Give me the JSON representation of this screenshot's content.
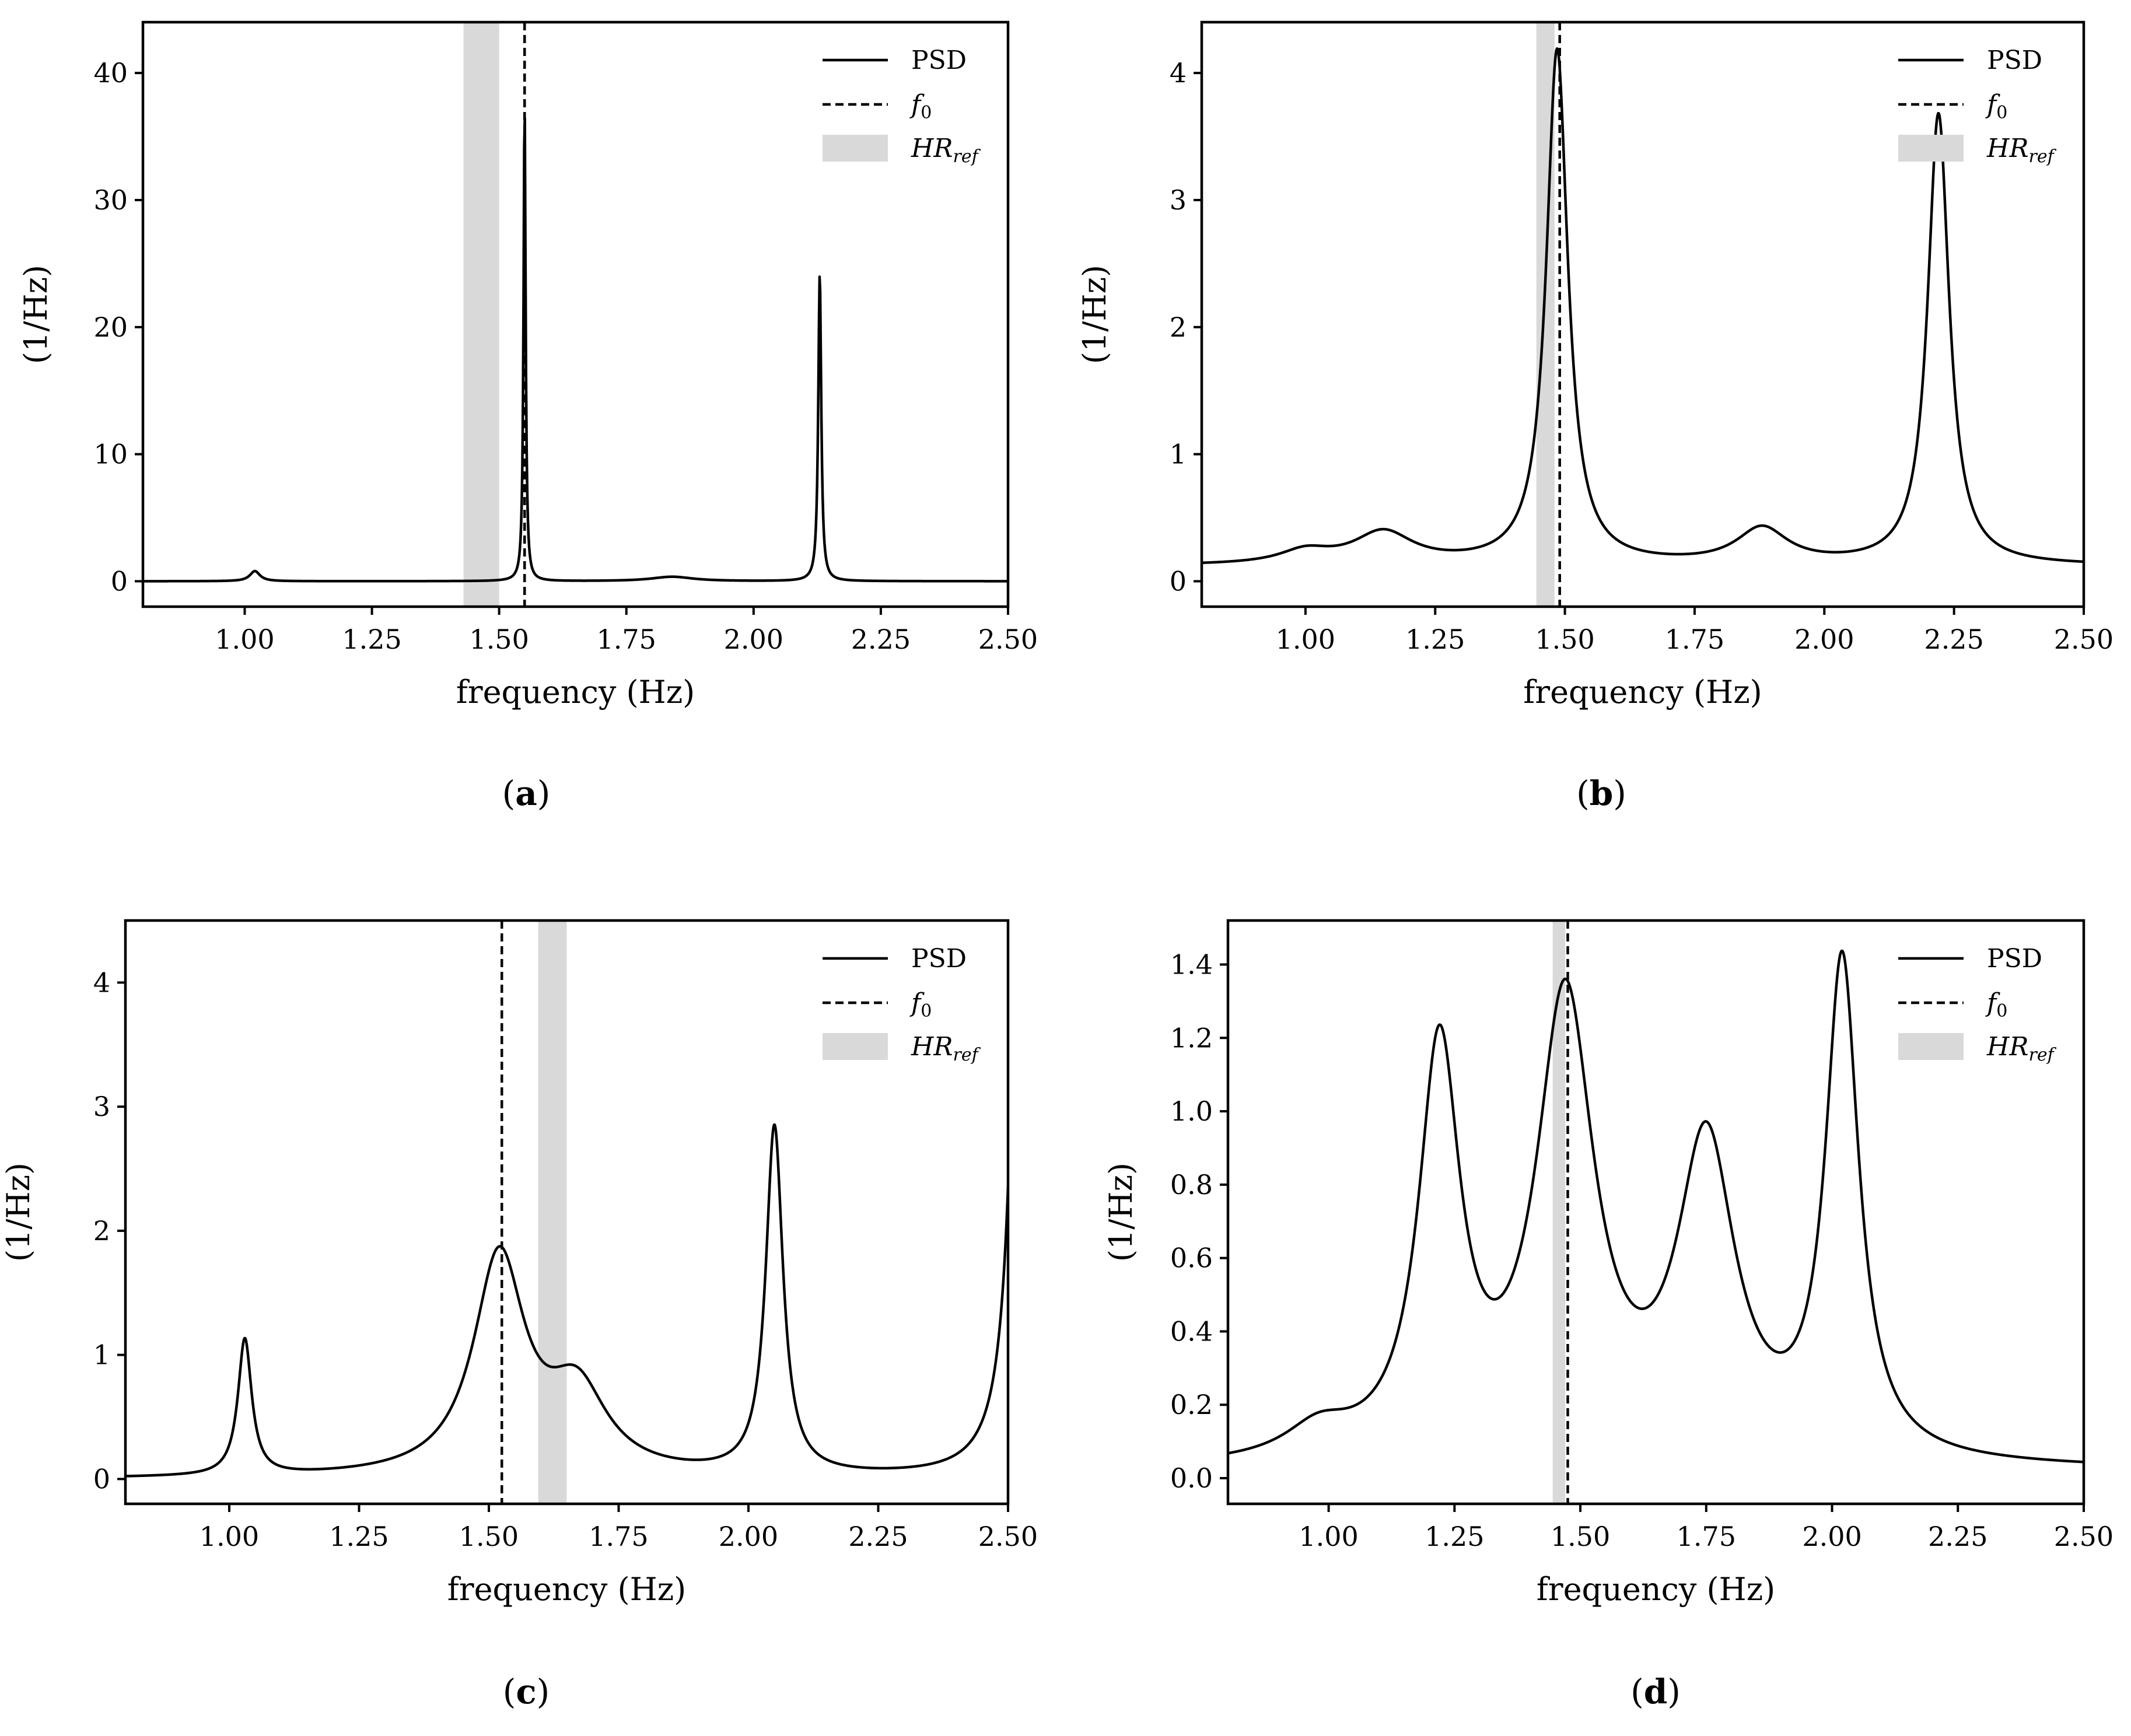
{
  "chart_data": [
    {
      "type": "line",
      "panel": "a",
      "caption": "(a)",
      "xlabel": "frequency (Hz)",
      "ylabel": "(1/Hz)",
      "xlim": [
        0.8,
        2.5
      ],
      "ylim": [
        -2,
        44
      ],
      "xticks": [
        1.0,
        1.25,
        1.5,
        1.75,
        2.0,
        2.25,
        2.5
      ],
      "xtick_labels": [
        "1.00",
        "1.25",
        "1.50",
        "1.75",
        "2.00",
        "2.25",
        "2.50"
      ],
      "yticks": [
        0,
        10,
        20,
        30,
        40
      ],
      "ytick_labels": [
        "0",
        "10",
        "20",
        "30",
        "40"
      ],
      "f0": 1.55,
      "hr_ref": [
        1.43,
        1.5
      ],
      "peaks": [
        {
          "f": 1.02,
          "amp": 0.8,
          "w": 0.012
        },
        {
          "f": 1.55,
          "amp": 37.5,
          "w": 0.0025
        },
        {
          "f": 1.84,
          "amp": 0.35,
          "w": 0.05
        },
        {
          "f": 2.13,
          "amp": 24.2,
          "w": 0.0035
        }
      ],
      "baseline": 0.0,
      "legend": [
        "PSD",
        "f",
        "0",
        "HR",
        "ref"
      ],
      "legend_position": "top-right"
    },
    {
      "type": "line",
      "panel": "b",
      "caption": "(b)",
      "xlabel": "frequency (Hz)",
      "ylabel": "(1/Hz)",
      "xlim": [
        0.8,
        2.5
      ],
      "ylim": [
        -0.2,
        4.4
      ],
      "xticks": [
        1.0,
        1.25,
        1.5,
        1.75,
        2.0,
        2.25,
        2.5
      ],
      "xtick_labels": [
        "1.00",
        "1.25",
        "1.50",
        "1.75",
        "2.00",
        "2.25",
        "2.50"
      ],
      "yticks": [
        0,
        1,
        2,
        3,
        4
      ],
      "ytick_labels": [
        "0",
        "1",
        "2",
        "3",
        "4"
      ],
      "f0": 1.49,
      "hr_ref": [
        1.445,
        1.48
      ],
      "peaks": [
        {
          "f": 1.0,
          "amp": 0.1,
          "w": 0.06
        },
        {
          "f": 1.15,
          "amp": 0.25,
          "w": 0.07
        },
        {
          "f": 1.485,
          "amp": 4.05,
          "w": 0.025
        },
        {
          "f": 1.88,
          "amp": 0.28,
          "w": 0.06
        },
        {
          "f": 2.22,
          "amp": 3.55,
          "w": 0.025
        }
      ],
      "baseline": 0.12,
      "legend": [
        "PSD",
        "f",
        "0",
        "HR",
        "ref"
      ],
      "legend_position": "top-right"
    },
    {
      "type": "line",
      "panel": "c",
      "caption": "(c)",
      "xlabel": "frequency (Hz)",
      "ylabel": "(1/Hz)",
      "xlim": [
        0.8,
        2.5
      ],
      "ylim": [
        -0.2,
        4.5
      ],
      "xticks": [
        1.0,
        1.25,
        1.5,
        1.75,
        2.0,
        2.25,
        2.5
      ],
      "xtick_labels": [
        "1.00",
        "1.25",
        "1.50",
        "1.75",
        "2.00",
        "2.25",
        "2.50"
      ],
      "yticks": [
        0,
        1,
        2,
        3,
        4
      ],
      "ytick_labels": [
        "0",
        "1",
        "2",
        "3",
        "4"
      ],
      "f0": 1.525,
      "hr_ref": [
        1.595,
        1.65
      ],
      "peaks": [
        {
          "f": 1.03,
          "amp": 1.1,
          "w": 0.016
        },
        {
          "f": 1.52,
          "amp": 1.75,
          "w": 0.06
        },
        {
          "f": 1.67,
          "amp": 0.65,
          "w": 0.07
        },
        {
          "f": 2.05,
          "amp": 2.8,
          "w": 0.02
        },
        {
          "f": 2.53,
          "amp": 7.6,
          "w": 0.02
        }
      ],
      "baseline": 0.0,
      "legend": [
        "PSD",
        "f",
        "0",
        "HR",
        "ref"
      ],
      "legend_position": "top-right"
    },
    {
      "type": "line",
      "panel": "d",
      "caption": "(d)",
      "xlabel": "frequency (Hz)",
      "ylabel": "(1/Hz)",
      "xlim": [
        0.8,
        2.5
      ],
      "ylim": [
        -0.07,
        1.52
      ],
      "xticks": [
        1.0,
        1.25,
        1.5,
        1.75,
        2.0,
        2.25,
        2.5
      ],
      "xtick_labels": [
        "1.00",
        "1.25",
        "1.50",
        "1.75",
        "2.00",
        "2.25",
        "2.50"
      ],
      "yticks": [
        0.0,
        0.2,
        0.4,
        0.6,
        0.8,
        1.0,
        1.2,
        1.4
      ],
      "ytick_labels": [
        "0.0",
        "0.2",
        "0.4",
        "0.6",
        "0.8",
        "1.0",
        "1.2",
        "1.4"
      ],
      "f0": 1.475,
      "hr_ref": [
        1.445,
        1.47
      ],
      "peaks": [
        {
          "f": 0.98,
          "amp": 0.08,
          "w": 0.08
        },
        {
          "f": 1.22,
          "amp": 1.1,
          "w": 0.05
        },
        {
          "f": 1.47,
          "amp": 1.24,
          "w": 0.07
        },
        {
          "f": 1.75,
          "amp": 0.84,
          "w": 0.07
        },
        {
          "f": 2.02,
          "amp": 1.34,
          "w": 0.04
        }
      ],
      "baseline": 0.02,
      "legend": [
        "PSD",
        "f",
        "0",
        "HR",
        "ref"
      ],
      "legend_position": "top-right"
    }
  ]
}
